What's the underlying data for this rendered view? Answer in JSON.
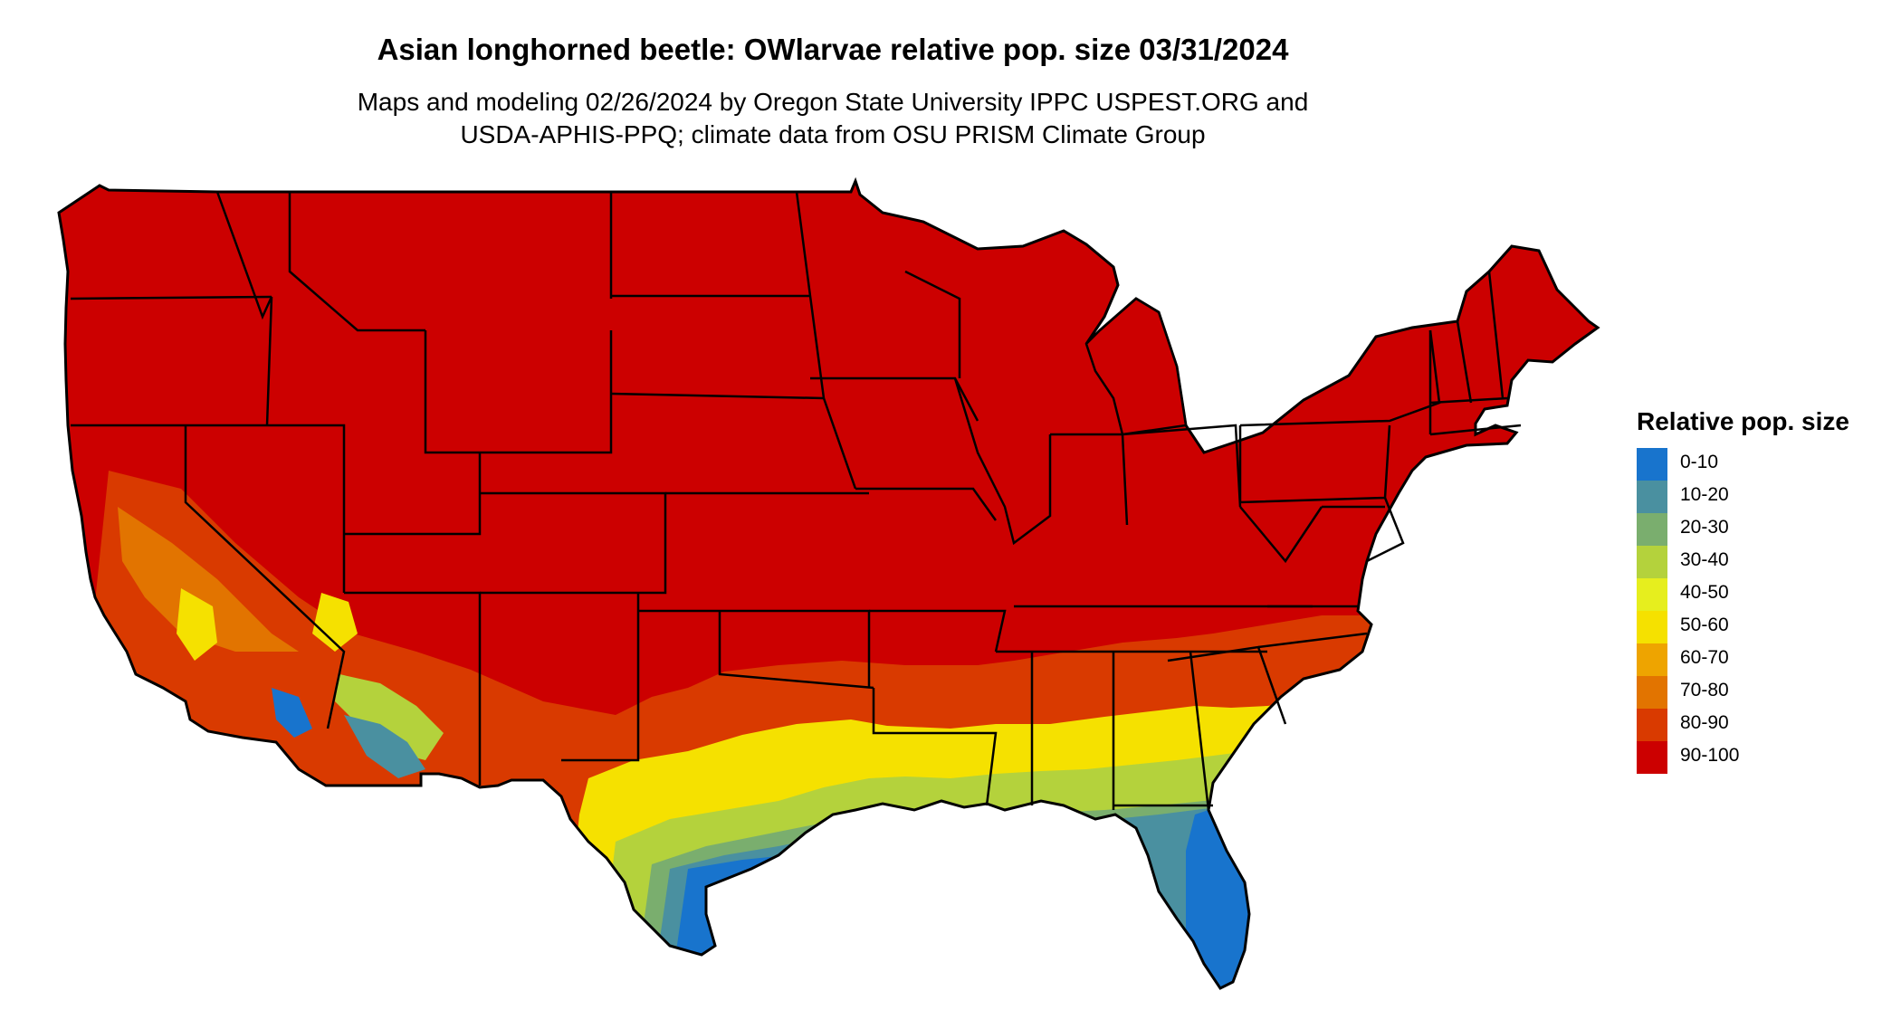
{
  "title": "Asian longhorned beetle: OWlarvae relative pop. size 03/31/2024",
  "subtitle_lines": [
    "Maps and modeling 02/26/2024 by Oregon State University IPPC USPEST.ORG and",
    "USDA-APHIS-PPQ; climate data from OSU PRISM Climate Group"
  ],
  "legend": {
    "title": "Relative pop. size",
    "items": [
      {
        "label": "0-10",
        "color": "#1874CD"
      },
      {
        "label": "10-20",
        "color": "#4A90A0"
      },
      {
        "label": "20-30",
        "color": "#7AAE6E"
      },
      {
        "label": "30-40",
        "color": "#B4D23C"
      },
      {
        "label": "40-50",
        "color": "#E6EE1E"
      },
      {
        "label": "50-60",
        "color": "#F5E100"
      },
      {
        "label": "60-70",
        "color": "#EEA400"
      },
      {
        "label": "70-80",
        "color": "#E27400"
      },
      {
        "label": "80-90",
        "color": "#D93A00"
      },
      {
        "label": "90-100",
        "color": "#CC0000"
      }
    ]
  },
  "map": {
    "region": "Contiguous United States",
    "dominant_class": "90-100",
    "outline_color": "#000000"
  }
}
